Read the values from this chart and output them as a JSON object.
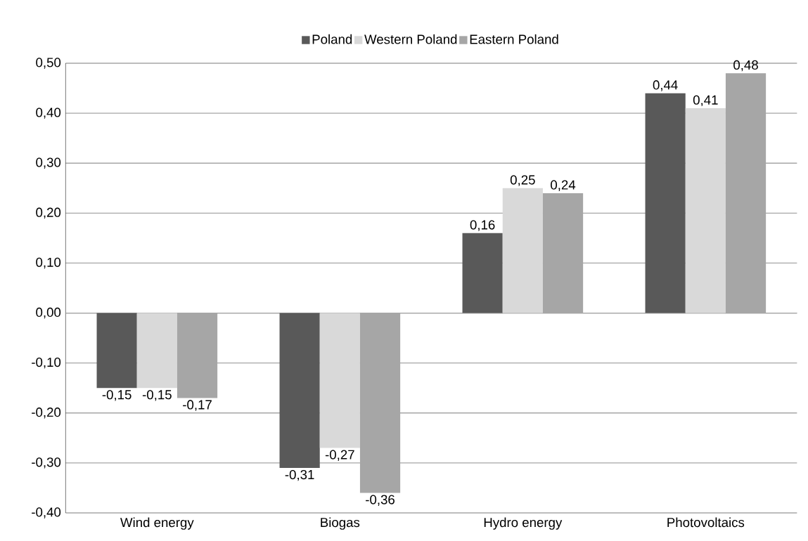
{
  "chart_data": {
    "type": "bar",
    "categories": [
      "Wind energy",
      "Biogas",
      "Hydro energy",
      "Photovoltaics"
    ],
    "series": [
      {
        "name": "Poland",
        "color": "#595959",
        "values": [
          -0.15,
          -0.31,
          0.16,
          0.44
        ],
        "value_labels": [
          "-0,15",
          "-0,31",
          "0,16",
          "0,44"
        ]
      },
      {
        "name": "Western Poland",
        "color": "#d9d9d9",
        "values": [
          -0.15,
          -0.27,
          0.25,
          0.41
        ],
        "value_labels": [
          "-0,15",
          "-0,27",
          "0,25",
          "0,41"
        ]
      },
      {
        "name": "Eastern Poland",
        "color": "#a6a6a6",
        "values": [
          -0.17,
          -0.36,
          0.24,
          0.48
        ],
        "value_labels": [
          "-0,17",
          "-0,36",
          "0,24",
          "0,48"
        ]
      }
    ],
    "ylim": [
      -0.4,
      0.5
    ],
    "yticks": [
      {
        "value": -0.4,
        "label": "-0,40"
      },
      {
        "value": -0.3,
        "label": "-0,30"
      },
      {
        "value": -0.2,
        "label": "-0,20"
      },
      {
        "value": -0.1,
        "label": "-0,10"
      },
      {
        "value": 0,
        "label": "0,00"
      },
      {
        "value": 0.1,
        "label": "0,10"
      },
      {
        "value": 0.2,
        "label": "0,20"
      },
      {
        "value": 0.3,
        "label": "0,30"
      },
      {
        "value": 0.4,
        "label": "0,40"
      },
      {
        "value": 0.5,
        "label": "0,50"
      }
    ],
    "grid": "y",
    "legend": "top"
  }
}
